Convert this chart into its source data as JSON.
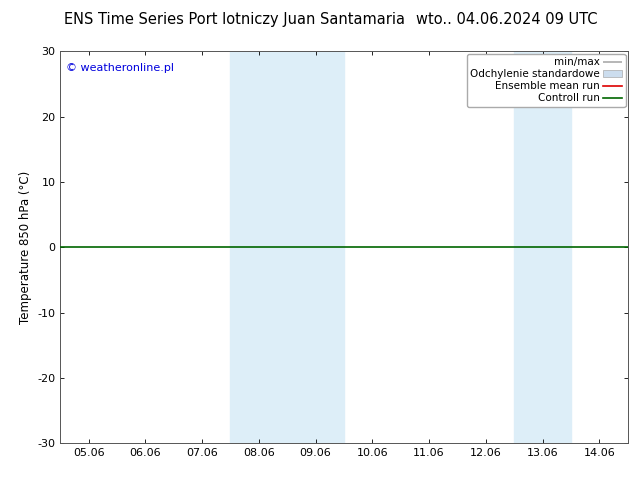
{
  "title_left": "ENS Time Series Port lotniczy Juan Santamaria",
  "title_right": "wto.. 04.06.2024 09 UTC",
  "ylabel": "Temperature 850 hPa (°C)",
  "ylim": [
    -30,
    30
  ],
  "yticks": [
    -30,
    -20,
    -10,
    0,
    10,
    20,
    30
  ],
  "xtick_labels": [
    "05.06",
    "06.06",
    "07.06",
    "08.06",
    "09.06",
    "10.06",
    "11.06",
    "12.06",
    "13.06",
    "14.06"
  ],
  "xtick_positions": [
    0,
    1,
    2,
    3,
    4,
    5,
    6,
    7,
    8,
    9
  ],
  "copyright_text": "© weatheronline.pl",
  "legend_labels": [
    "min/max",
    "Odchylenie standardowe",
    "Ensemble mean run",
    "Controll run"
  ],
  "shade_bands": [
    {
      "x_start": 3,
      "x_end": 4,
      "color": "#ddeef8",
      "alpha": 1.0
    },
    {
      "x_start": 4,
      "x_end": 5,
      "color": "#ddeef8",
      "alpha": 1.0
    },
    {
      "x_start": 8,
      "x_end": 9,
      "color": "#ddeef8",
      "alpha": 1.0
    }
  ],
  "background_color": "#ffffff",
  "zero_line_color": "#006600",
  "title_fontsize": 10.5,
  "axis_label_fontsize": 8.5,
  "tick_fontsize": 8,
  "legend_fontsize": 7.5,
  "copyright_color": "#0000dd",
  "copyright_fontsize": 8,
  "minmax_color": "#aaaaaa",
  "odch_color": "#ccddee",
  "ens_color": "#dd0000",
  "ctrl_color": "#006600"
}
